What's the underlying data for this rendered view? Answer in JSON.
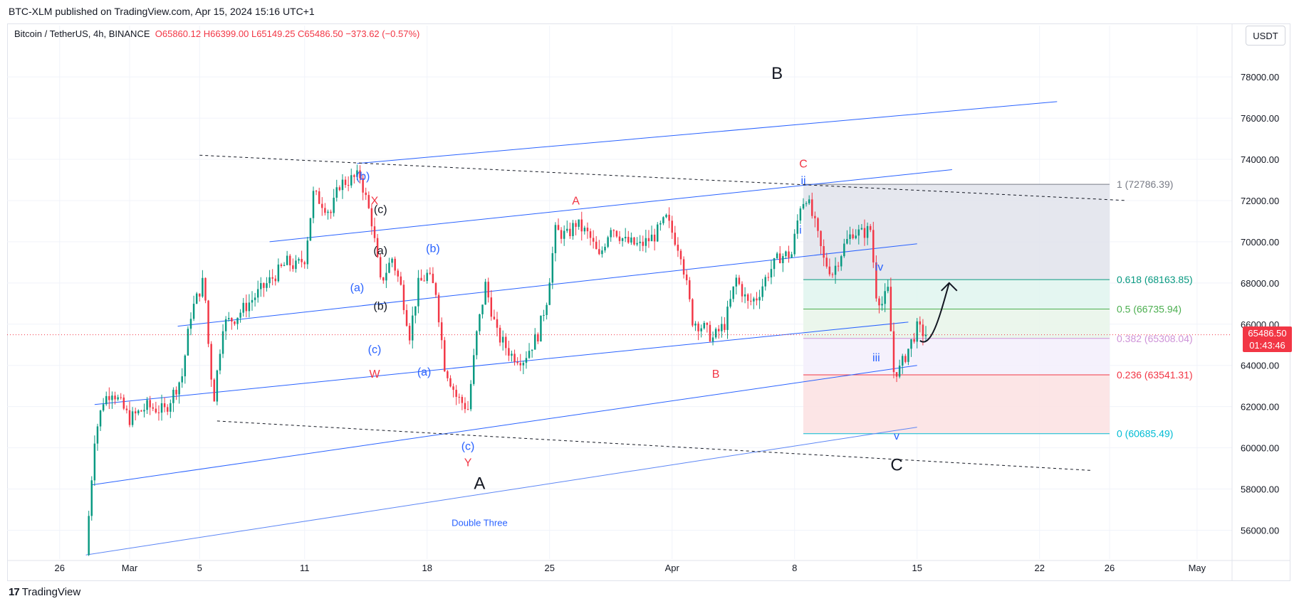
{
  "header": {
    "published": "BTC-XLM published on TradingView.com, Apr 15, 2024 15:16 UTC+1"
  },
  "symbol": {
    "name": "Bitcoin / TetherUS, 4h, BINANCE",
    "open": "O65860.12",
    "high": "H66399.00",
    "low": "L65149.25",
    "close": "C65486.50",
    "change": "−373.62 (−0.57%)"
  },
  "currency": "USDT",
  "last_price": {
    "price": "65486.50",
    "countdown": "01:43:46"
  },
  "footer": {
    "brand": "TradingView",
    "logo_glyph": "17"
  },
  "colors": {
    "up": "#089981",
    "down": "#f23645",
    "channel": "#2962ff",
    "fib_gray": "#e0e3eb",
    "fib_green": "#dff4ee",
    "fib_lavender": "#f3eefb",
    "fib_red": "#fbe0e2"
  },
  "chart_data": {
    "type": "candlestick",
    "timeframe": "4h",
    "x_range": [
      "2024-02-23",
      "2024-05-03"
    ],
    "ylim": [
      54600,
      79800
    ],
    "x_tick_labels": [
      {
        "label": "26",
        "date": "2024-02-26"
      },
      {
        "label": "Mar",
        "date": "2024-03-01"
      },
      {
        "label": "5",
        "date": "2024-03-05"
      },
      {
        "label": "11",
        "date": "2024-03-11"
      },
      {
        "label": "18",
        "date": "2024-03-18"
      },
      {
        "label": "25",
        "date": "2024-03-25"
      },
      {
        "label": "Apr",
        "date": "2024-04-01"
      },
      {
        "label": "8",
        "date": "2024-04-08"
      },
      {
        "label": "15",
        "date": "2024-04-15"
      },
      {
        "label": "22",
        "date": "2024-04-22"
      },
      {
        "label": "26",
        "date": "2024-04-26"
      },
      {
        "label": "May",
        "date": "2024-05-01"
      }
    ],
    "y_tick_labels": [
      "78000.00",
      "76000.00",
      "74000.00",
      "72000.00",
      "70000.00",
      "68000.00",
      "66000.00",
      "64000.00",
      "62000.00",
      "60000.00",
      "58000.00",
      "56000.00"
    ],
    "y_ticks": [
      78000,
      76000,
      74000,
      72000,
      70000,
      68000,
      66000,
      64000,
      62000,
      60000,
      58000,
      56000
    ],
    "anchors": [
      [
        "2024-02-27 12:00",
        54800
      ],
      [
        "2024-02-28 00:00",
        60500
      ],
      [
        "2024-02-28 12:00",
        62300
      ],
      [
        "2024-02-29 00:00",
        62800
      ],
      [
        "2024-03-01 00:00",
        61400
      ],
      [
        "2024-03-02 00:00",
        62000
      ],
      [
        "2024-03-03 00:00",
        61800
      ],
      [
        "2024-03-04 00:00",
        63500
      ],
      [
        "2024-03-04 12:00",
        66500
      ],
      [
        "2024-03-05 06:00",
        68200
      ],
      [
        "2024-03-05 14:00",
        64000
      ],
      [
        "2024-03-05 20:00",
        62500
      ],
      [
        "2024-03-06 08:00",
        66000
      ],
      [
        "2024-03-07 00:00",
        66300
      ],
      [
        "2024-03-08 00:00",
        67200
      ],
      [
        "2024-03-09 00:00",
        68100
      ],
      [
        "2024-03-10 00:00",
        69000
      ],
      [
        "2024-03-10 12:00",
        68800
      ],
      [
        "2024-03-11 00:00",
        69200
      ],
      [
        "2024-03-11 12:00",
        72300
      ],
      [
        "2024-03-12 00:00",
        71900
      ],
      [
        "2024-03-12 12:00",
        71400
      ],
      [
        "2024-03-13 00:00",
        72800
      ],
      [
        "2024-03-14 04:00",
        73200
      ],
      [
        "2024-03-14 20:00",
        71000
      ],
      [
        "2024-03-15 08:00",
        68000
      ],
      [
        "2024-03-16 00:00",
        69200
      ],
      [
        "2024-03-16 12:00",
        67800
      ],
      [
        "2024-03-17 00:00",
        65500
      ],
      [
        "2024-03-17 12:00",
        67900
      ],
      [
        "2024-03-18 00:00",
        68400
      ],
      [
        "2024-03-18 12:00",
        67600
      ],
      [
        "2024-03-19 00:00",
        64000
      ],
      [
        "2024-03-19 16:00",
        62500
      ],
      [
        "2024-03-20 08:00",
        61900
      ],
      [
        "2024-03-20 20:00",
        65500
      ],
      [
        "2024-03-21 08:00",
        67900
      ],
      [
        "2024-03-22 00:00",
        65500
      ],
      [
        "2024-03-22 20:00",
        64500
      ],
      [
        "2024-03-23 12:00",
        64300
      ],
      [
        "2024-03-24 08:00",
        65500
      ],
      [
        "2024-03-24 20:00",
        67200
      ],
      [
        "2024-03-25 08:00",
        70500
      ],
      [
        "2024-03-26 00:00",
        70300
      ],
      [
        "2024-03-26 12:00",
        70900
      ],
      [
        "2024-03-27 06:00",
        70300
      ],
      [
        "2024-03-27 20:00",
        69200
      ],
      [
        "2024-03-28 12:00",
        70800
      ],
      [
        "2024-03-29 08:00",
        70000
      ],
      [
        "2024-03-30 04:00",
        69800
      ],
      [
        "2024-03-31 00:00",
        70300
      ],
      [
        "2024-03-31 16:00",
        71100
      ],
      [
        "2024-04-01 12:00",
        69500
      ],
      [
        "2024-04-02 04:00",
        66200
      ],
      [
        "2024-04-02 20:00",
        65800
      ],
      [
        "2024-04-03 08:00",
        65300
      ],
      [
        "2024-04-04 00:00",
        66000
      ],
      [
        "2024-04-04 16:00",
        68200
      ],
      [
        "2024-04-05 08:00",
        67000
      ],
      [
        "2024-04-05 20:00",
        67300
      ],
      [
        "2024-04-06 12:00",
        68500
      ],
      [
        "2024-04-07 04:00",
        69300
      ],
      [
        "2024-04-07 20:00",
        69400
      ],
      [
        "2024-04-08 08:00",
        71800
      ],
      [
        "2024-04-08 16:00",
        72200
      ],
      [
        "2024-04-09 04:00",
        70800
      ],
      [
        "2024-04-09 16:00",
        69100
      ],
      [
        "2024-04-10 04:00",
        68500
      ],
      [
        "2024-04-10 20:00",
        69800
      ],
      [
        "2024-04-11 08:00",
        70500
      ],
      [
        "2024-04-11 20:00",
        70400
      ],
      [
        "2024-04-12 08:00",
        70600
      ],
      [
        "2024-04-12 16:00",
        67500
      ],
      [
        "2024-04-13 00:00",
        67000
      ],
      [
        "2024-04-13 08:00",
        67600
      ],
      [
        "2024-04-13 16:00",
        63700
      ],
      [
        "2024-04-14 00:00",
        63800
      ],
      [
        "2024-04-14 12:00",
        64800
      ],
      [
        "2024-04-15 00:00",
        65800
      ],
      [
        "2024-04-15 12:00",
        65486.5
      ]
    ],
    "last_price": 65486.5,
    "fibonacci": {
      "x_start": "2024-04-08 12:00",
      "x_end": "2024-04-26 00:00",
      "levels": [
        {
          "ratio": "1",
          "price": 72786.39,
          "label": "1 (72786.39)",
          "color": "#787b86"
        },
        {
          "ratio": "0.618",
          "price": 68163.85,
          "label": "0.618 (68163.85)",
          "color": "#089981"
        },
        {
          "ratio": "0.5",
          "price": 66735.94,
          "label": "0.5 (66735.94)",
          "color": "#4caf50"
        },
        {
          "ratio": "0.382",
          "price": 65308.04,
          "label": "0.382 (65308.04)",
          "color": "#ce93d8"
        },
        {
          "ratio": "0.236",
          "price": 63541.31,
          "label": "0.236 (63541.31)",
          "color": "#f23645"
        },
        {
          "ratio": "0",
          "price": 60685.49,
          "label": "0 (60685.49)",
          "color": "#00bcd4"
        }
      ]
    },
    "channel_lines": [
      {
        "p1": [
          "2024-03-14 00:00",
          73800
        ],
        "p2": [
          "2024-04-23 00:00",
          76800
        ],
        "style": "solid",
        "color": "#2962ff"
      },
      {
        "p1": [
          "2024-03-09 00:00",
          70000
        ],
        "p2": [
          "2024-04-17 00:00",
          73500
        ],
        "style": "solid",
        "color": "#2962ff"
      },
      {
        "p1": [
          "2024-03-03 18:00",
          65900
        ],
        "p2": [
          "2024-04-15 00:00",
          69900
        ],
        "style": "solid",
        "color": "#2962ff"
      },
      {
        "p1": [
          "2024-02-28 00:00",
          62100
        ],
        "p2": [
          "2024-04-14 12:00",
          66100
        ],
        "style": "solid",
        "color": "#2962ff"
      },
      {
        "p1": [
          "2024-02-27 20:00",
          58200
        ],
        "p2": [
          "2024-04-15 00:00",
          64000
        ],
        "style": "solid",
        "color": "#2962ff"
      },
      {
        "p1": [
          "2024-02-27 12:00",
          54800
        ],
        "p2": [
          "2024-04-15 00:00",
          61000
        ],
        "style": "solid",
        "color": "#5b85f5"
      },
      {
        "p1": [
          "2024-03-05 00:00",
          74200
        ],
        "p2": [
          "2024-04-27 00:00",
          72000
        ],
        "style": "dashed",
        "color": "#131722"
      },
      {
        "p1": [
          "2024-03-06 00:00",
          61300
        ],
        "p2": [
          "2024-04-25 00:00",
          58900
        ],
        "style": "dashed",
        "color": "#131722"
      }
    ],
    "labels": [
      {
        "text": "B",
        "x": "2024-04-07 00:00",
        "y": 77900,
        "color": "#131722",
        "size": "large"
      },
      {
        "text": "A",
        "x": "2024-03-21 00:00",
        "y": 58000,
        "color": "#131722",
        "size": "large"
      },
      {
        "text": "C",
        "x": "2024-04-13 20:00",
        "y": 58900,
        "color": "#131722",
        "size": "large"
      },
      {
        "text": "C",
        "x": "2024-04-08 12:00",
        "y": 73600,
        "color": "#f23645",
        "size": "medium"
      },
      {
        "text": "A",
        "x": "2024-03-26 12:00",
        "y": 71800,
        "color": "#f23645",
        "size": "medium"
      },
      {
        "text": "B",
        "x": "2024-04-03 12:00",
        "y": 63400,
        "color": "#f23645",
        "size": "medium"
      },
      {
        "text": "X",
        "x": "2024-03-15 00:00",
        "y": 71800,
        "color": "#f23645",
        "size": "medium"
      },
      {
        "text": "W",
        "x": "2024-03-15 00:00",
        "y": 63400,
        "color": "#f23645",
        "size": "medium"
      },
      {
        "text": "Y",
        "x": "2024-03-20 08:00",
        "y": 59100,
        "color": "#f23645",
        "size": "medium"
      },
      {
        "text": "(b)",
        "x": "2024-03-14 08:00",
        "y": 73000,
        "color": "#2962ff",
        "size": "medium"
      },
      {
        "text": "(c)",
        "x": "2024-03-15 08:00",
        "y": 71400,
        "color": "#131722",
        "size": "medium"
      },
      {
        "text": "(a)",
        "x": "2024-03-15 08:00",
        "y": 69400,
        "color": "#131722",
        "size": "medium"
      },
      {
        "text": "(b)",
        "x": "2024-03-18 08:00",
        "y": 69500,
        "color": "#2962ff",
        "size": "medium"
      },
      {
        "text": "(a)",
        "x": "2024-03-14 00:00",
        "y": 67600,
        "color": "#2962ff",
        "size": "medium"
      },
      {
        "text": "(b)",
        "x": "2024-03-15 08:00",
        "y": 66700,
        "color": "#131722",
        "size": "medium"
      },
      {
        "text": "(c)",
        "x": "2024-03-15 00:00",
        "y": 64600,
        "color": "#2962ff",
        "size": "medium"
      },
      {
        "text": "(a)",
        "x": "2024-03-17 20:00",
        "y": 63500,
        "color": "#2962ff",
        "size": "medium"
      },
      {
        "text": "(c)",
        "x": "2024-03-20 08:00",
        "y": 59900,
        "color": "#2962ff",
        "size": "medium"
      },
      {
        "text": "ii",
        "x": "2024-04-08 12:00",
        "y": 72800,
        "color": "#2962ff",
        "size": "medium"
      },
      {
        "text": "i",
        "x": "2024-04-08 08:00",
        "y": 70400,
        "color": "#2962ff",
        "size": "medium"
      },
      {
        "text": "iv",
        "x": "2024-04-12 20:00",
        "y": 68600,
        "color": "#2962ff",
        "size": "medium"
      },
      {
        "text": "iii",
        "x": "2024-04-12 16:00",
        "y": 64200,
        "color": "#2962ff",
        "size": "medium"
      },
      {
        "text": "v",
        "x": "2024-04-13 20:00",
        "y": 60400,
        "color": "#2962ff",
        "size": "medium"
      },
      {
        "text": "Double Three",
        "x": "2024-03-21 00:00",
        "y": 56200,
        "color": "#2962ff",
        "size": "small"
      }
    ],
    "projection_arrow": {
      "points": [
        [
          "2024-04-15 04:00",
          65200
        ],
        [
          "2024-04-15 20:00",
          64800
        ],
        [
          "2024-04-16 08:00",
          66500
        ],
        [
          "2024-04-16 20:00",
          68000
        ]
      ],
      "color": "#131722"
    }
  }
}
